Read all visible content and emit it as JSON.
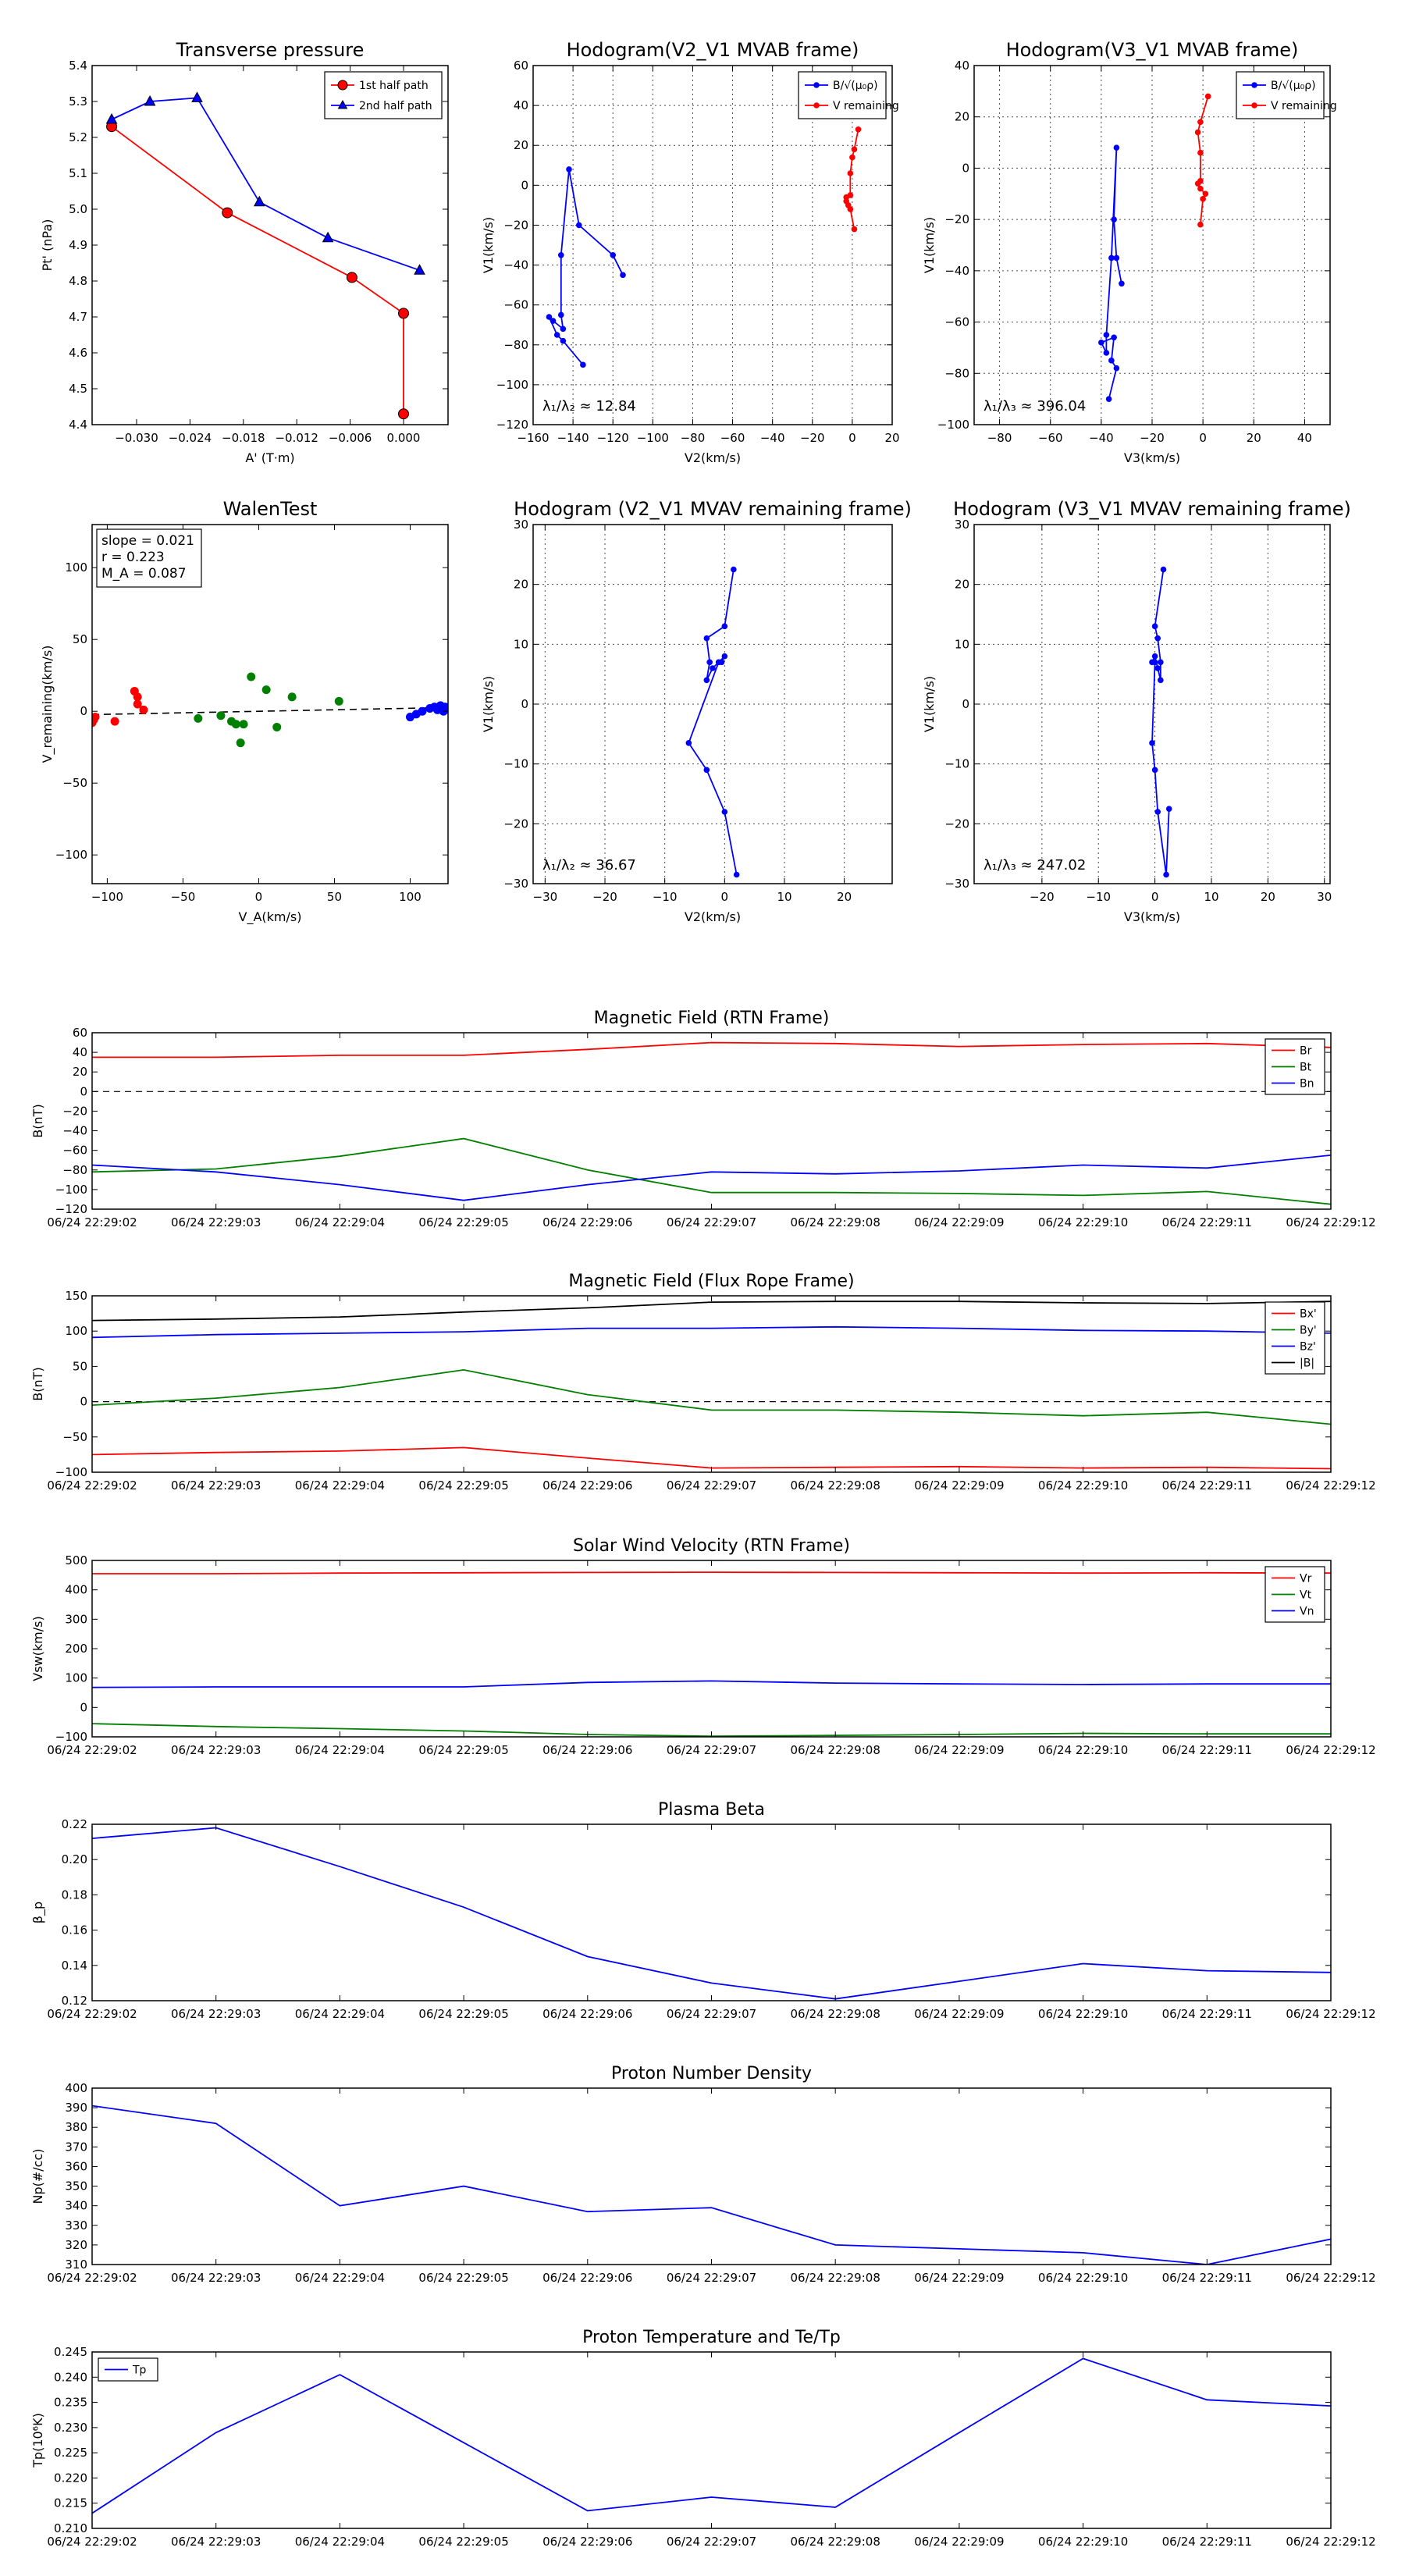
{
  "chart_data": [
    {
      "id": "p1",
      "type": "line",
      "title": "Transverse pressure",
      "xlabel": "A' (T·m)",
      "ylabel": "Pt' (nPa)",
      "xlim": [
        -0.035,
        0.005
      ],
      "ylim": [
        4.4,
        5.4
      ],
      "xticks": [
        -0.03,
        -0.024,
        -0.018,
        -0.012,
        -0.006,
        0.0
      ],
      "xticklabels": [
        "−0.030",
        "−0.024",
        "−0.018",
        "−0.012",
        "−0.006",
        "0.000"
      ],
      "yticks": [
        4.4,
        4.5,
        4.6,
        4.7,
        4.8,
        4.9,
        5.0,
        5.1,
        5.2,
        5.3,
        5.4
      ],
      "yticklabels": [
        "4.4",
        "4.5",
        "4.6",
        "4.7",
        "4.8",
        "4.9",
        "5.0",
        "5.1",
        "5.2",
        "5.3",
        "5.4"
      ],
      "grid": false,
      "legend_position": "top-right",
      "series": [
        {
          "name": "1st half path",
          "color": "#ff0000",
          "marker": "circle",
          "x": [
            -0.0328,
            -0.0198,
            -0.0058,
            0.0,
            0.0
          ],
          "y": [
            5.23,
            4.99,
            4.81,
            4.71,
            4.43
          ]
        },
        {
          "name": "2nd half path",
          "color": "#0000ff",
          "marker": "triangle",
          "x": [
            -0.0328,
            -0.0285,
            -0.0232,
            -0.0162,
            -0.0085,
            0.0018
          ],
          "y": [
            5.25,
            5.3,
            5.31,
            5.02,
            4.92,
            4.83
          ]
        }
      ]
    },
    {
      "id": "p2",
      "type": "line",
      "title": "Hodogram(V2_V1 MVAB frame)",
      "xlabel": "V2(km/s)",
      "ylabel": "V1(km/s)",
      "xlim": [
        -160,
        20
      ],
      "ylim": [
        -120,
        60
      ],
      "xticks": [
        -160,
        -140,
        -120,
        -100,
        -80,
        -60,
        -40,
        -20,
        0,
        20
      ],
      "xticklabels": [
        "−160",
        "−140",
        "−120",
        "−100",
        "−80",
        "−60",
        "−40",
        "−20",
        "0",
        "20"
      ],
      "yticks": [
        -120,
        -100,
        -80,
        -60,
        -40,
        -20,
        0,
        20,
        40,
        60
      ],
      "yticklabels": [
        "−120",
        "−100",
        "−80",
        "−60",
        "−40",
        "−20",
        "0",
        "20",
        "40",
        "60"
      ],
      "grid": true,
      "legend_position": "top-right",
      "annotation": "λ₁/λ₂ ≈ 12.84",
      "series": [
        {
          "name": "B/√(μ₀ρ)",
          "color": "#0000ff",
          "marker": "circle",
          "x": [
            -115,
            -120,
            -137,
            -142,
            -146,
            -146,
            -145,
            -150,
            -152,
            -148,
            -145,
            -135
          ],
          "y": [
            -45,
            -35,
            -20,
            8,
            -35,
            -65,
            -72,
            -68,
            -66,
            -75,
            -78,
            -90
          ]
        },
        {
          "name": "V remaining",
          "color": "#ff0000",
          "marker": "circle",
          "x": [
            3,
            1,
            0,
            -1,
            -1,
            -3,
            -3,
            -2,
            -1,
            1
          ],
          "y": [
            28,
            18,
            14,
            6,
            -5,
            -6,
            -8,
            -10,
            -12,
            -22
          ]
        }
      ]
    },
    {
      "id": "p3",
      "type": "line",
      "title": "Hodogram(V3_V1 MVAB frame)",
      "xlabel": "V3(km/s)",
      "ylabel": "V1(km/s)",
      "xlim": [
        -90,
        50
      ],
      "ylim": [
        -100,
        40
      ],
      "xticks": [
        -80,
        -60,
        -40,
        -20,
        0,
        20,
        40
      ],
      "xticklabels": [
        "−80",
        "−60",
        "−40",
        "−20",
        "0",
        "20",
        "40"
      ],
      "yticks": [
        -100,
        -80,
        -60,
        -40,
        -20,
        0,
        20,
        40
      ],
      "yticklabels": [
        "−100",
        "−80",
        "−60",
        "−40",
        "−20",
        "0",
        "20",
        "40"
      ],
      "grid": true,
      "legend_position": "top-right",
      "annotation": "λ₁/λ₃ ≈ 396.04",
      "series": [
        {
          "name": "B/√(μ₀ρ)",
          "color": "#0000ff",
          "marker": "circle",
          "x": [
            -32,
            -34,
            -35,
            -34,
            -36,
            -38,
            -38,
            -40,
            -35,
            -36,
            -34,
            -37
          ],
          "y": [
            -45,
            -35,
            -20,
            8,
            -35,
            -65,
            -72,
            -68,
            -66,
            -75,
            -78,
            -90
          ]
        },
        {
          "name": "V remaining",
          "color": "#ff0000",
          "marker": "circle",
          "x": [
            2,
            -1,
            -2,
            -1,
            -1,
            -2,
            -1,
            1,
            0,
            -1
          ],
          "y": [
            28,
            18,
            14,
            6,
            -5,
            -6,
            -8,
            -10,
            -12,
            -22
          ]
        }
      ]
    },
    {
      "id": "p4",
      "type": "scatter",
      "title": "WalenTest",
      "xlabel": "V_A(km/s)",
      "ylabel": "V_remaining(km/s)",
      "xlim": [
        -110,
        125
      ],
      "ylim": [
        -120,
        130
      ],
      "xticks": [
        -100,
        -50,
        0,
        50,
        100
      ],
      "xticklabels": [
        "−100",
        "−50",
        "0",
        "50",
        "100"
      ],
      "yticks": [
        -100,
        -50,
        0,
        50,
        100
      ],
      "yticklabels": [
        "−100",
        "−50",
        "0",
        "50",
        "100"
      ],
      "grid": false,
      "stats": [
        "slope = 0.021",
        "r = 0.223",
        "M_A = 0.087"
      ],
      "fit_line": {
        "slope": 0.021,
        "intercept": 0.0
      },
      "series": [
        {
          "name": "red",
          "color": "#ff0000",
          "x": [
            -110,
            -109,
            -108,
            -95,
            -82,
            -80,
            -80,
            -76
          ],
          "y": [
            -8,
            -6,
            -4,
            -7,
            14,
            10,
            5,
            1
          ]
        },
        {
          "name": "green",
          "color": "#008000",
          "x": [
            -40,
            -25,
            -18,
            -15,
            -12,
            -10,
            -5,
            5,
            12,
            22,
            53
          ],
          "y": [
            -5,
            -3,
            -7,
            -9,
            -22,
            -9,
            24,
            15,
            -11,
            10,
            7
          ]
        },
        {
          "name": "blue",
          "color": "#0000ff",
          "x": [
            100,
            104,
            108,
            113,
            116,
            118,
            120,
            121,
            122,
            123
          ],
          "y": [
            -4,
            -2,
            0,
            2,
            3,
            1,
            4,
            2,
            0,
            3
          ]
        }
      ]
    },
    {
      "id": "p5",
      "type": "line",
      "title": "Hodogram (V2_V1 MVAV remaining frame)",
      "xlabel": "V2(km/s)",
      "ylabel": "V1(km/s)",
      "xlim": [
        -32,
        28
      ],
      "ylim": [
        -30,
        30
      ],
      "xticks": [
        -30,
        -20,
        -10,
        0,
        10,
        20
      ],
      "xticklabels": [
        "−30",
        "−20",
        "−10",
        "0",
        "10",
        "20"
      ],
      "yticks": [
        -30,
        -20,
        -10,
        0,
        10,
        20,
        30
      ],
      "yticklabels": [
        "−30",
        "−20",
        "−10",
        "0",
        "10",
        "20",
        "30"
      ],
      "grid": true,
      "annotation": "λ₁/λ₂ ≈ 36.67",
      "series": [
        {
          "name": "V",
          "color": "#0000ff",
          "marker": "circle",
          "x": [
            1.5,
            0,
            -3,
            -2.5,
            -3,
            -2,
            0,
            -0.5,
            -1,
            -6,
            -3,
            0,
            2
          ],
          "y": [
            22.5,
            13,
            11,
            7,
            4,
            6,
            8,
            7,
            7,
            -6.5,
            -11,
            -18,
            -28.5
          ]
        }
      ]
    },
    {
      "id": "p6",
      "type": "line",
      "title": "Hodogram (V3_V1 MVAV remaining frame)",
      "xlabel": "V3(km/s)",
      "ylabel": "V1(km/s)",
      "xlim": [
        -32,
        31
      ],
      "ylim": [
        -30,
        30
      ],
      "xticks": [
        -20,
        -10,
        0,
        10,
        20,
        30
      ],
      "xticklabels": [
        "−20",
        "−10",
        "0",
        "10",
        "20",
        "30"
      ],
      "yticks": [
        -30,
        -20,
        -10,
        0,
        10,
        20,
        30
      ],
      "yticklabels": [
        "−30",
        "−20",
        "−10",
        "0",
        "10",
        "20",
        "30"
      ],
      "grid": true,
      "annotation": "λ₁/λ₃ ≈ 247.02",
      "series": [
        {
          "name": "V",
          "color": "#0000ff",
          "marker": "circle",
          "x": [
            1.5,
            0,
            0.5,
            1,
            1,
            0.5,
            0,
            -0.5,
            0,
            -0.5,
            0,
            0.5,
            2,
            2.5
          ],
          "y": [
            22.5,
            13,
            11,
            7,
            4,
            6,
            8,
            7,
            7,
            -6.5,
            -11,
            -18,
            -28.5,
            -17.5
          ]
        }
      ]
    },
    {
      "id": "t1",
      "type": "line",
      "title": "Magnetic Field (RTN Frame)",
      "xlabel": "",
      "ylabel": "B(nT)",
      "xlim": [
        0,
        10
      ],
      "ylim": [
        -120,
        60
      ],
      "yticks": [
        -120,
        -100,
        -80,
        -60,
        -40,
        -20,
        0,
        20,
        40,
        60
      ],
      "yticklabels": [
        "−120",
        "−100",
        "−80",
        "−60",
        "−40",
        "−20",
        "0",
        "20",
        "40",
        "60"
      ],
      "zero_line": true,
      "legend_position": "top-right",
      "series": [
        {
          "name": "Br",
          "color": "#ff0000",
          "values": [
            35,
            35,
            37,
            37,
            43,
            50,
            49,
            46,
            48,
            49,
            45
          ]
        },
        {
          "name": "Bt",
          "color": "#008000",
          "values": [
            -82,
            -79,
            -66,
            -48,
            -80,
            -103,
            -103,
            -104,
            -106,
            -102,
            -115
          ]
        },
        {
          "name": "Bn",
          "color": "#0000ff",
          "values": [
            -75,
            -82,
            -95,
            -111,
            -95,
            -82,
            -84,
            -81,
            -75,
            -78,
            -65
          ]
        }
      ]
    },
    {
      "id": "t2",
      "type": "line",
      "title": "Magnetic Field (Flux Rope Frame)",
      "xlabel": "",
      "ylabel": "B(nT)",
      "xlim": [
        0,
        10
      ],
      "ylim": [
        -100,
        150
      ],
      "yticks": [
        -100,
        -50,
        0,
        50,
        100,
        150
      ],
      "yticklabels": [
        "−100",
        "−50",
        "0",
        "50",
        "100",
        "150"
      ],
      "zero_line": true,
      "legend_position": "top-right",
      "series": [
        {
          "name": "Bx'",
          "color": "#ff0000",
          "values": [
            -75,
            -72,
            -70,
            -65,
            -80,
            -94,
            -93,
            -92,
            -94,
            -93,
            -95
          ]
        },
        {
          "name": "By'",
          "color": "#008000",
          "values": [
            -5,
            5,
            20,
            45,
            10,
            -12,
            -12,
            -15,
            -20,
            -15,
            -32
          ]
        },
        {
          "name": "Bz'",
          "color": "#0000ff",
          "values": [
            91,
            95,
            97,
            99,
            104,
            104,
            106,
            104,
            101,
            100,
            97
          ]
        },
        {
          "name": "|B|",
          "color": "#000000",
          "values": [
            115,
            117,
            120,
            127,
            133,
            141,
            142,
            142,
            140,
            139,
            142
          ]
        }
      ]
    },
    {
      "id": "t3",
      "type": "line",
      "title": "Solar Wind Velocity (RTN Frame)",
      "xlabel": "",
      "ylabel": "Vsw(km/s)",
      "xlim": [
        0,
        10
      ],
      "ylim": [
        -100,
        500
      ],
      "yticks": [
        -100,
        0,
        100,
        200,
        300,
        400,
        500
      ],
      "yticklabels": [
        "−100",
        "0",
        "100",
        "200",
        "300",
        "400",
        "500"
      ],
      "legend_position": "top-right",
      "series": [
        {
          "name": "Vr",
          "color": "#ff0000",
          "values": [
            455,
            455,
            457,
            458,
            459,
            460,
            459,
            458,
            457,
            458,
            457
          ]
        },
        {
          "name": "Vt",
          "color": "#008000",
          "values": [
            -55,
            -65,
            -72,
            -80,
            -92,
            -98,
            -95,
            -92,
            -88,
            -90,
            -90
          ]
        },
        {
          "name": "Vn",
          "color": "#0000ff",
          "values": [
            68,
            70,
            70,
            70,
            85,
            90,
            83,
            80,
            78,
            80,
            80
          ]
        }
      ]
    },
    {
      "id": "t4",
      "type": "line",
      "title": "Plasma Beta",
      "xlabel": "",
      "ylabel": "β_p",
      "xlim": [
        0,
        10
      ],
      "ylim": [
        0.12,
        0.22
      ],
      "yticks": [
        0.12,
        0.14,
        0.16,
        0.18,
        0.2,
        0.22
      ],
      "yticklabels": [
        "0.12",
        "0.14",
        "0.16",
        "0.18",
        "0.20",
        "0.22"
      ],
      "series": [
        {
          "name": "beta",
          "color": "#0000ff",
          "values": [
            0.212,
            0.218,
            0.196,
            0.173,
            0.145,
            0.13,
            0.121,
            0.131,
            0.141,
            0.137,
            0.136
          ]
        }
      ]
    },
    {
      "id": "t5",
      "type": "line",
      "title": "Proton Number Density",
      "xlabel": "",
      "ylabel": "Np(#/cc)",
      "xlim": [
        0,
        10
      ],
      "ylim": [
        310,
        400
      ],
      "yticks": [
        310,
        320,
        330,
        340,
        350,
        360,
        370,
        380,
        390,
        400
      ],
      "yticklabels": [
        "310",
        "320",
        "330",
        "340",
        "350",
        "360",
        "370",
        "380",
        "390",
        "400"
      ],
      "series": [
        {
          "name": "Np",
          "color": "#0000ff",
          "values": [
            391,
            382,
            340,
            350,
            337,
            339,
            320,
            318,
            316,
            310,
            323
          ]
        }
      ]
    },
    {
      "id": "t6",
      "type": "line",
      "title": "Proton Temperature and Te/Tp",
      "xlabel": "",
      "ylabel": "Tp(10⁶K)",
      "xlim": [
        0,
        10
      ],
      "ylim": [
        0.21,
        0.245
      ],
      "yticks": [
        0.21,
        0.215,
        0.22,
        0.225,
        0.23,
        0.235,
        0.24,
        0.245
      ],
      "yticklabels": [
        "0.210",
        "0.215",
        "0.220",
        "0.225",
        "0.230",
        "0.235",
        "0.240",
        "0.245"
      ],
      "legend_position": "top-left",
      "series": [
        {
          "name": "Tp",
          "color": "#0000ff",
          "values": [
            0.213,
            0.229,
            0.2405,
            0.227,
            0.2135,
            0.2162,
            0.2142,
            0.229,
            0.2437,
            0.2355,
            0.2343
          ]
        }
      ]
    }
  ],
  "time_ticks": [
    "06/24 22:29:02",
    "06/24 22:29:03",
    "06/24 22:29:04",
    "06/24 22:29:05",
    "06/24 22:29:06",
    "06/24 22:29:07",
    "06/24 22:29:08",
    "06/24 22:29:09",
    "06/24 22:29:10",
    "06/24 22:29:11",
    "06/24 22:29:12"
  ]
}
